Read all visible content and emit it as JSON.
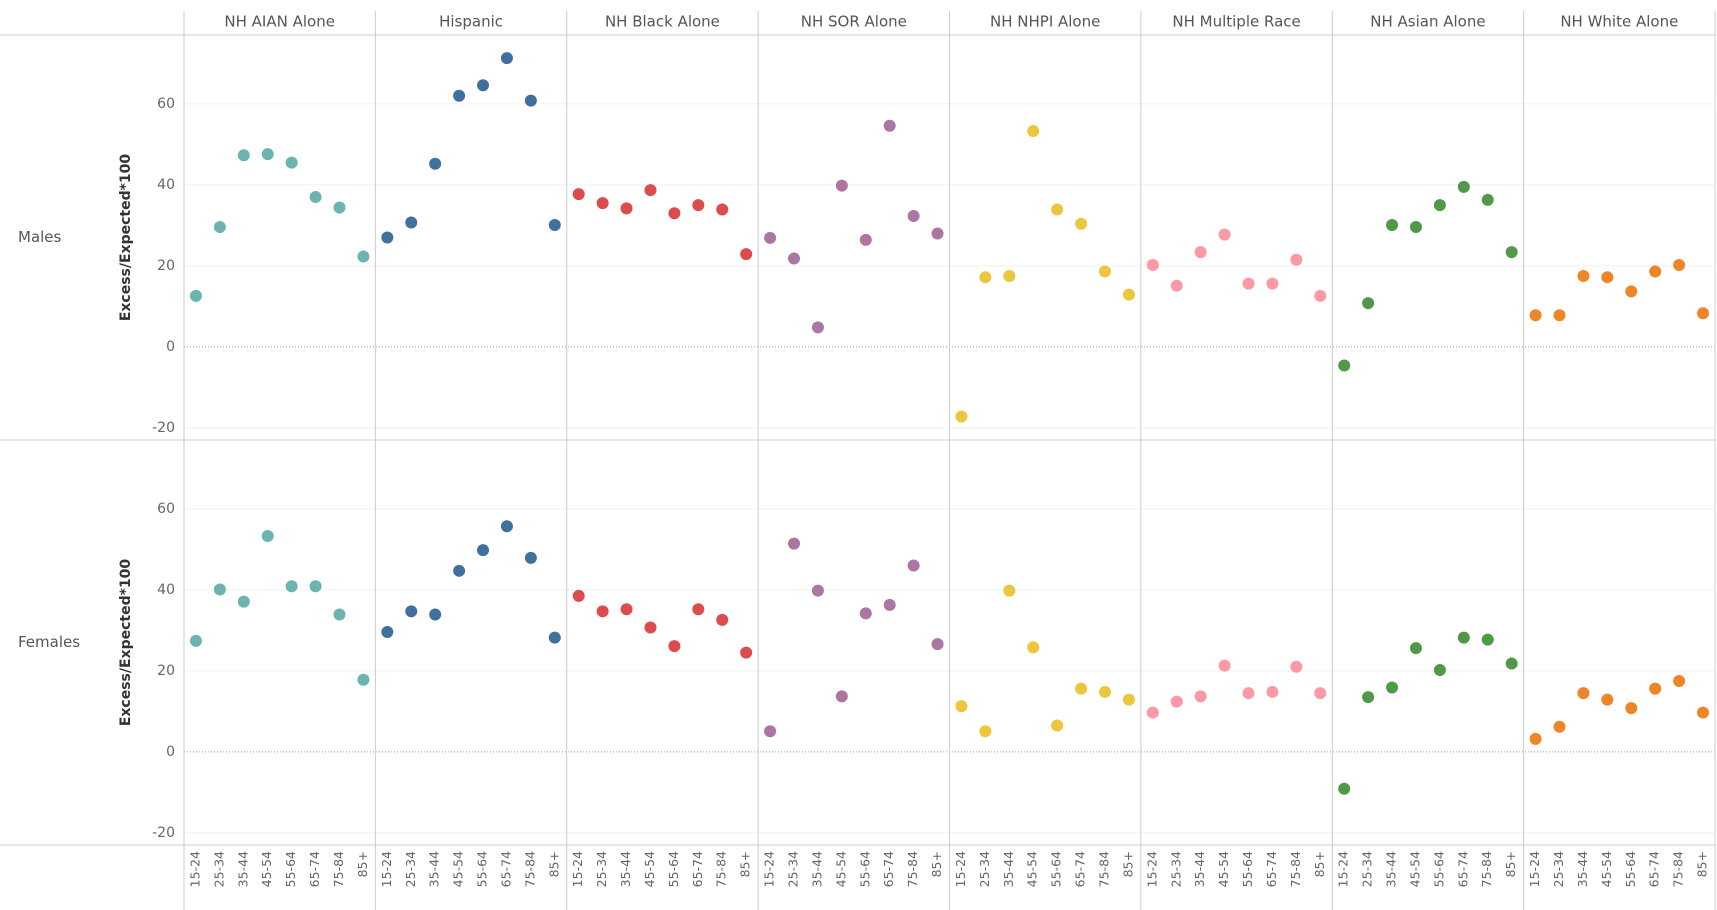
{
  "chart_data": {
    "type": "dot",
    "y_label": "Excess/Expected*100",
    "categories": [
      "15-24",
      "25-34",
      "35-44",
      "45-54",
      "55-64",
      "65-74",
      "75-84",
      "85+"
    ],
    "ylim": [
      -23,
      77
    ],
    "yticks": [
      -20,
      0,
      20,
      40,
      60
    ],
    "grid": true,
    "columns": [
      {
        "name": "NH AIAN Alone",
        "color": "#6cb4b0"
      },
      {
        "name": "Hispanic",
        "color": "#41709f"
      },
      {
        "name": "NH Black Alone",
        "color": "#dd4b4d"
      },
      {
        "name": "NH SOR Alone",
        "color": "#ab76a0"
      },
      {
        "name": "NH NHPI Alone",
        "color": "#ecc63d"
      },
      {
        "name": "NH Multiple Race",
        "color": "#fc99a5"
      },
      {
        "name": "NH Asian Alone",
        "color": "#51984a"
      },
      {
        "name": "NH White Alone",
        "color": "#ee8628"
      }
    ],
    "rows": [
      {
        "name": "Males",
        "values": [
          [
            12.6,
            29.6,
            47.3,
            47.6,
            45.5,
            37,
            34.4,
            22.3
          ],
          [
            27,
            30.7,
            45.2,
            62,
            64.6,
            71.3,
            60.8,
            30.1
          ],
          [
            37.7,
            35.5,
            34.2,
            38.7,
            33,
            35,
            33.9,
            22.9
          ],
          [
            26.9,
            21.8,
            4.8,
            39.8,
            26.4,
            54.6,
            32.3,
            28
          ],
          [
            -17.2,
            17.2,
            17.5,
            53.3,
            33.9,
            30.4,
            18.6,
            12.9
          ],
          [
            20.2,
            15.1,
            23.4,
            27.7,
            15.6,
            15.6,
            21.5,
            12.6
          ],
          [
            -4.6,
            10.8,
            30.1,
            29.6,
            35,
            39.5,
            36.3,
            23.4
          ],
          [
            7.8,
            7.8,
            17.5,
            17.2,
            13.7,
            18.6,
            20.2,
            8.3
          ]
        ]
      },
      {
        "name": "Females",
        "values": [
          [
            27.4,
            40.1,
            37.1,
            53.3,
            40.9,
            40.9,
            33.9,
            17.8
          ],
          [
            29.6,
            34.7,
            33.9,
            44.7,
            49.8,
            55.7,
            47.9,
            28.2
          ],
          [
            38.5,
            34.7,
            35.2,
            30.7,
            26.1,
            35.2,
            32.6,
            24.5
          ],
          [
            5.1,
            51.4,
            39.8,
            13.7,
            34.2,
            36.3,
            46,
            26.6
          ],
          [
            11.3,
            5.1,
            39.8,
            25.8,
            6.5,
            15.6,
            14.8,
            12.9
          ],
          [
            9.7,
            12.4,
            13.7,
            21.3,
            14.5,
            14.8,
            21,
            14.5
          ],
          [
            -9.1,
            13.5,
            15.9,
            25.6,
            20.2,
            28.2,
            27.7,
            21.8
          ],
          [
            3.2,
            6.2,
            14.5,
            12.9,
            10.8,
            15.6,
            17.5,
            9.7
          ]
        ]
      }
    ]
  }
}
